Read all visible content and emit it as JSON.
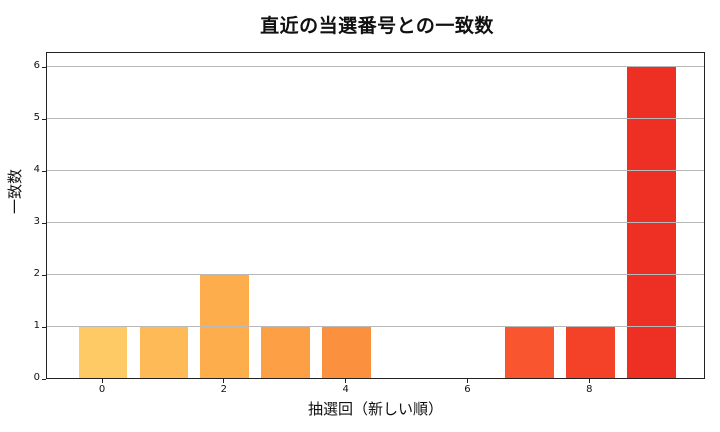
{
  "chart_data": {
    "type": "bar",
    "title": "直近の当選番号との一致数",
    "xlabel": "抽選回（新しい順）",
    "ylabel": "一致数",
    "categories": [
      0,
      1,
      2,
      3,
      4,
      5,
      6,
      7,
      8,
      9
    ],
    "values": [
      1,
      1,
      2,
      1,
      1,
      0,
      0,
      1,
      1,
      6
    ],
    "colors": [
      "#FECA66",
      "#FEBA56",
      "#FDAD4B",
      "#FC9F45",
      "#FB903F",
      "#FA8038",
      "#FA6A33",
      "#F9552E",
      "#F44228",
      "#EE2F23"
    ],
    "xticks": [
      0,
      2,
      4,
      6,
      8
    ],
    "yticks": [
      0,
      1,
      2,
      3,
      4,
      5,
      6
    ],
    "xlim": [
      -0.92,
      9.9
    ],
    "ylim": [
      0,
      6.29
    ],
    "grid": "y",
    "legend": null
  },
  "labels": {
    "title": "直近の当選番号との一致数",
    "xlabel": "抽選回（新しい順）",
    "ylabel": "一致数"
  }
}
